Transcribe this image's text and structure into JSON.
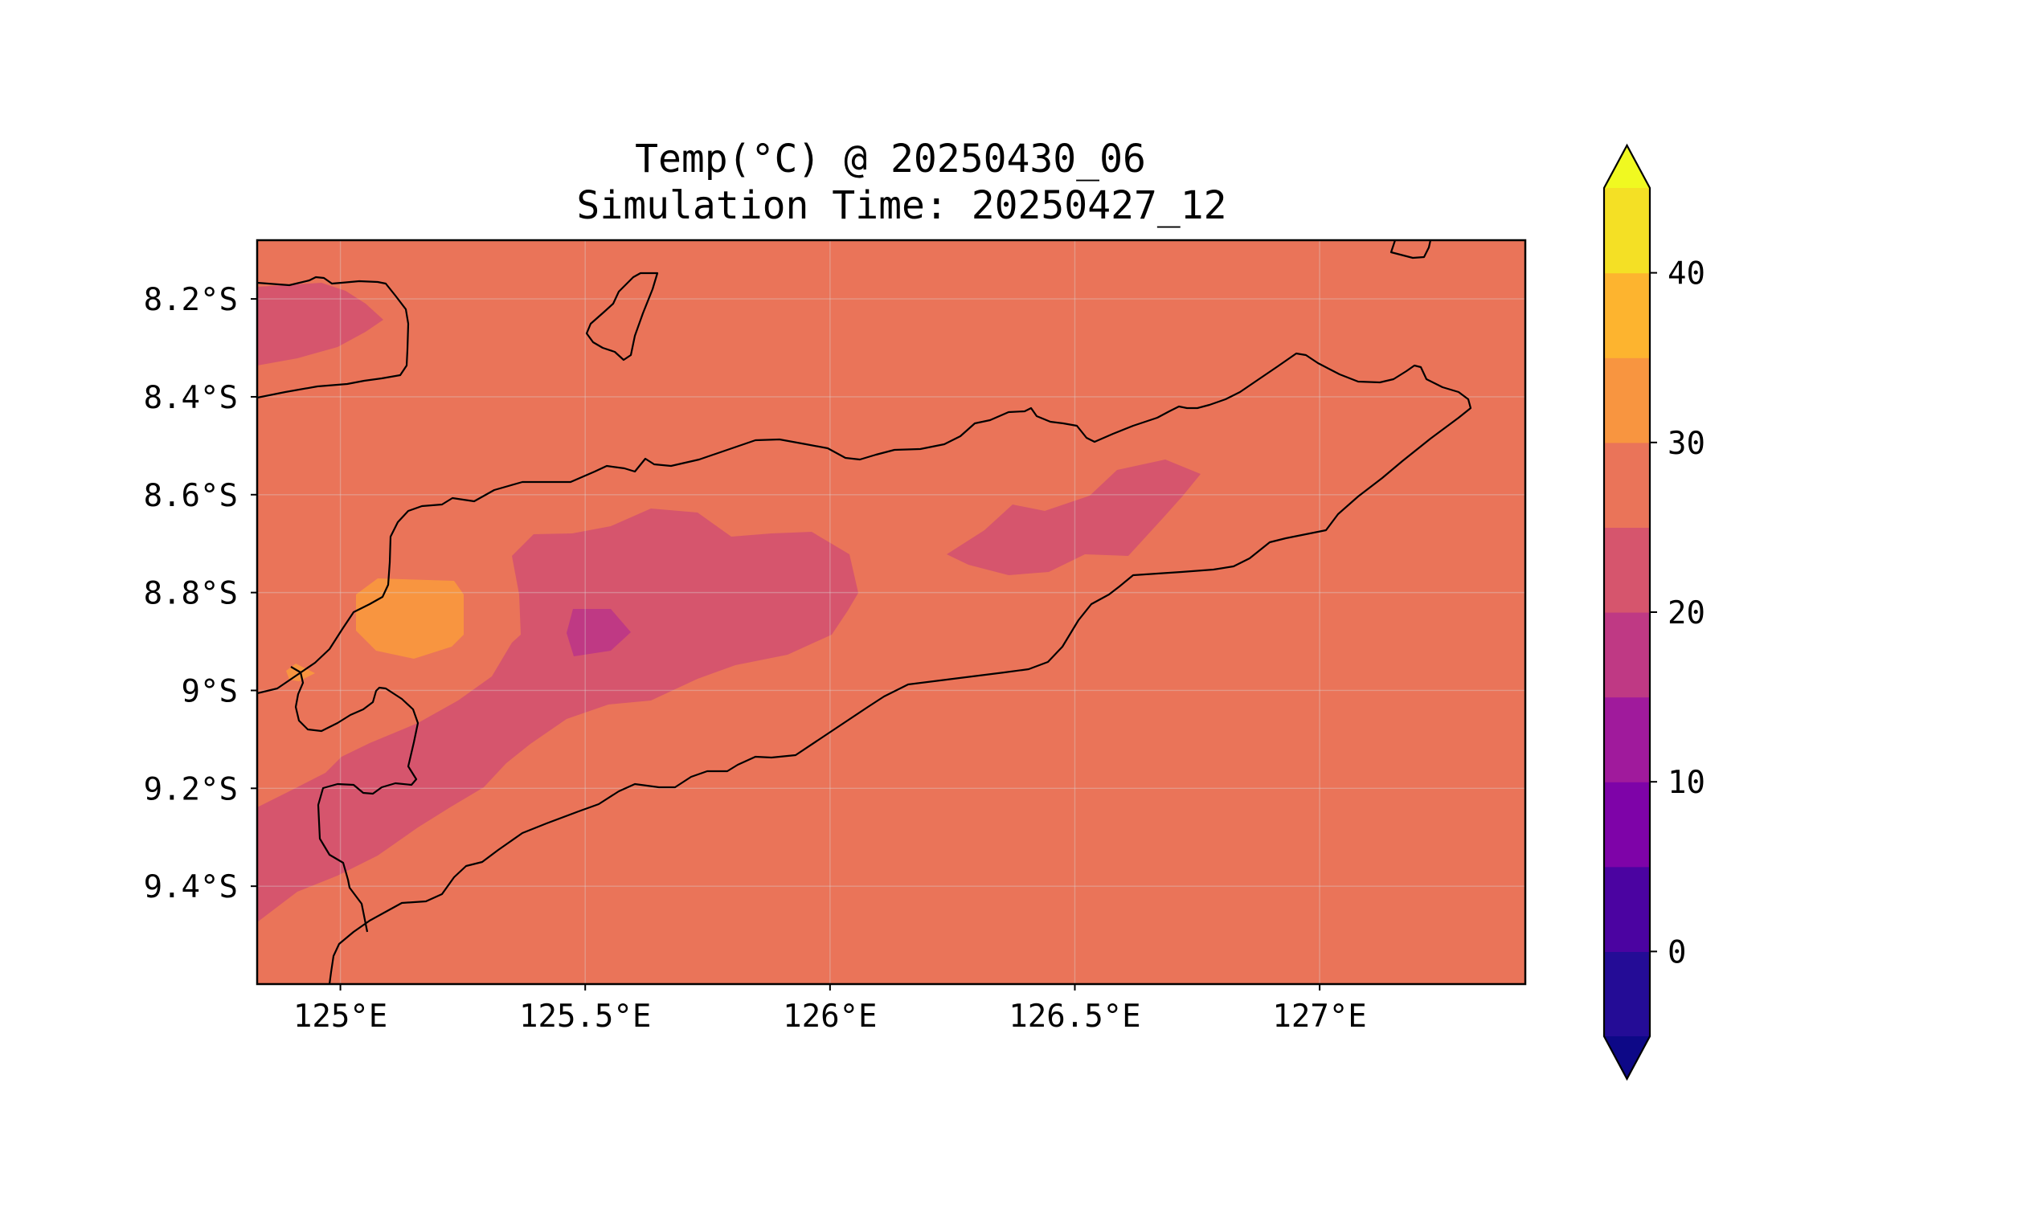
{
  "title": {
    "line1": "Temp(°C) @ 20250430_06",
    "line2": "Simulation Time: 20250427_12"
  },
  "map": {
    "lon_range": [
      124.83,
      127.42
    ],
    "lat_range": [
      -9.6,
      -8.08
    ],
    "x_ticks": [
      {
        "value": 125.0,
        "label": "125°E"
      },
      {
        "value": 125.5,
        "label": "125.5°E"
      },
      {
        "value": 126.0,
        "label": "126°E"
      },
      {
        "value": 126.5,
        "label": "126.5°E"
      },
      {
        "value": 127.0,
        "label": "127°E"
      }
    ],
    "y_ticks": [
      {
        "value": -8.2,
        "label": "8.2°S"
      },
      {
        "value": -8.4,
        "label": "8.4°S"
      },
      {
        "value": -8.6,
        "label": "8.6°S"
      },
      {
        "value": -8.8,
        "label": "8.8°S"
      },
      {
        "value": -9.0,
        "label": "9°S"
      },
      {
        "value": -9.2,
        "label": "9.2°S"
      },
      {
        "value": -9.4,
        "label": "9.4°S"
      }
    ],
    "background_level_color": "#ea7459"
  },
  "colorbar": {
    "levels": [
      -5,
      0,
      5,
      10,
      15,
      20,
      25,
      30,
      35,
      40,
      45
    ],
    "colors": [
      "#240c96",
      "#4b03a1",
      "#7e03a8",
      "#a01a9c",
      "#bf3984",
      "#d6556d",
      "#ea7459",
      "#f89540",
      "#fdb42f",
      "#f4e025"
    ],
    "under_color": "#0d0887",
    "over_color": "#f0f921",
    "ticks": [
      {
        "value": 0,
        "label": "0"
      },
      {
        "value": 10,
        "label": "10"
      },
      {
        "value": 20,
        "label": "20"
      },
      {
        "value": 30,
        "label": "30"
      },
      {
        "value": 40,
        "label": "40"
      }
    ]
  }
}
